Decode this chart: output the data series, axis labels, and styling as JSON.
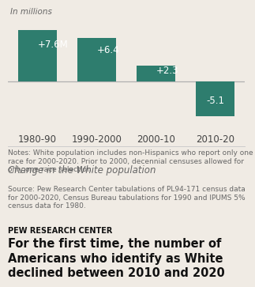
{
  "title": "For the first time, the number of\nAmericans who identify as White\ndeclined between 2010 and 2020",
  "subtitle": "Change in the White population",
  "ylabel": "In millions",
  "categories": [
    "1980-90",
    "1990-2000",
    "2000-10",
    "2010-20"
  ],
  "values": [
    7.6,
    6.4,
    2.3,
    -5.1
  ],
  "labels": [
    "+7.6M",
    "+6.4",
    "+2.3",
    "-5.1"
  ],
  "bar_color": "#2e7d6e",
  "background_color": "#f0ebe4",
  "title_fontsize": 10.5,
  "subtitle_fontsize": 8.5,
  "ylabel_fontsize": 7.5,
  "tick_fontsize": 8.5,
  "label_fontsize": 8.5,
  "notes": "Notes: White population includes non-Hispanics who report only one race for 2000-2020. Prior to 2000, decennial censuses allowed for only one race selection.",
  "source": "Source: Pew Research Center tabulations of PL94-171 census data for 2000-2020, Census Bureau tabulations for 1990 and IPUMS 5% census data for 1980.",
  "footer": "PEW RESEARCH CENTER",
  "notes_fontsize": 6.5,
  "footer_fontsize": 7.0
}
